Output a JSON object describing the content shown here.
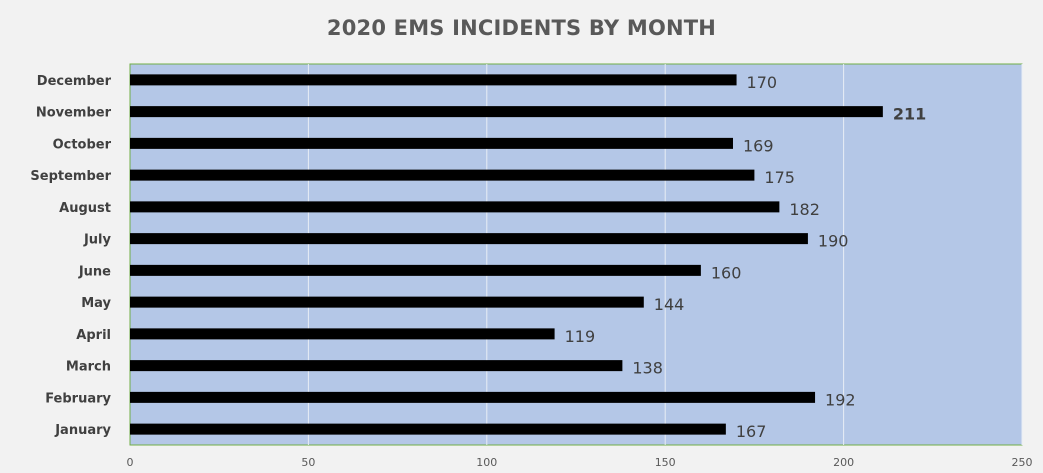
{
  "chart_data": {
    "type": "bar",
    "orientation": "horizontal",
    "title": "2020 EMS INCIDENTS BY MONTH",
    "categories": [
      "January",
      "February",
      "March",
      "April",
      "May",
      "June",
      "July",
      "August",
      "September",
      "October",
      "November",
      "December"
    ],
    "values": [
      167,
      192,
      138,
      119,
      144,
      160,
      190,
      182,
      175,
      169,
      211,
      170
    ],
    "xlim": [
      0,
      250
    ],
    "xticks": [
      0,
      50,
      100,
      150,
      200,
      250
    ],
    "grid": true,
    "legend": "none",
    "highlight_max": true
  },
  "colors": {
    "bar": "#000000",
    "plot_background": "#b4c7e7",
    "plot_border": "#70ad47",
    "gridline": "#e8edf5",
    "page_background": "#f2f2f2",
    "title": "#595959"
  }
}
